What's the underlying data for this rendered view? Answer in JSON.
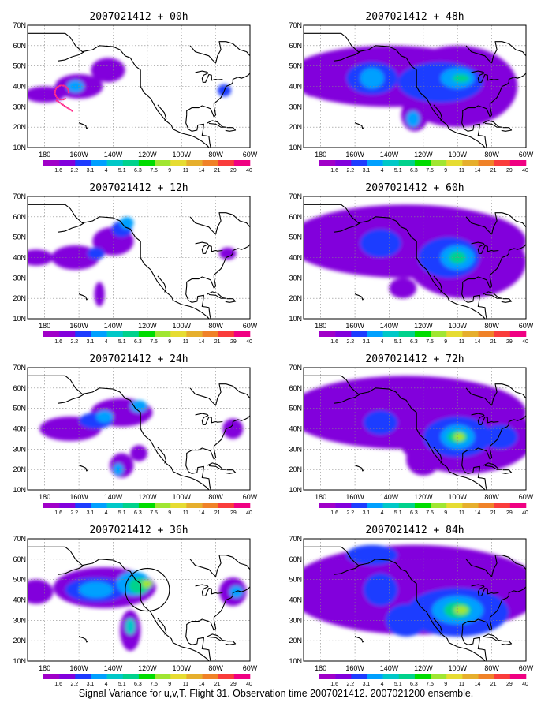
{
  "caption": "Signal Variance for u,v,T. Flight 31. Observation time 2007021412. 2007021200 ensemble.",
  "chart_data": {
    "type": "heatmap",
    "x_ticks": [
      "180",
      "160W",
      "140W",
      "120W",
      "100W",
      "80W",
      "60W"
    ],
    "y_ticks": [
      "70N",
      "60N",
      "50N",
      "40N",
      "30N",
      "20N",
      "10N"
    ],
    "xlim_lon": [
      -190,
      -60
    ],
    "ylim_lat": [
      10,
      70
    ],
    "grid": true,
    "colorbar": {
      "labels": [
        "1.6",
        "2.2",
        "3.1",
        "4",
        "5.1",
        "6.3",
        "7.5",
        "9",
        "11",
        "14",
        "21",
        "29",
        "40"
      ],
      "colors": [
        "#a000c8",
        "#8200dc",
        "#1e3cff",
        "#00a0ff",
        "#00c8c8",
        "#00d28c",
        "#00dc00",
        "#a0e632",
        "#e6dc32",
        "#e6af2d",
        "#f08228",
        "#fa3c3c",
        "#f00082"
      ]
    },
    "panels": [
      {
        "title": "2007021412 + 00h",
        "blobs": [
          {
            "lon": -180,
            "lat": 36,
            "rlon": 12,
            "rlat": 4,
            "level": 1
          },
          {
            "lon": -160,
            "lat": 40,
            "rlon": 14,
            "rlat": 6,
            "level": 1
          },
          {
            "lon": -162,
            "lat": 40,
            "rlon": 5,
            "rlat": 3,
            "level": 3
          },
          {
            "lon": -143,
            "lat": 48,
            "rlon": 10,
            "rlat": 6,
            "level": 1
          },
          {
            "lon": -75,
            "lat": 38,
            "rlon": 4,
            "rlat": 3,
            "level": 2
          }
        ]
      },
      {
        "title": "2007021412 + 12h",
        "blobs": [
          {
            "lon": -185,
            "lat": 40,
            "rlon": 10,
            "rlat": 4,
            "level": 1
          },
          {
            "lon": -162,
            "lat": 40,
            "rlon": 14,
            "rlat": 6,
            "level": 1
          },
          {
            "lon": -140,
            "lat": 48,
            "rlon": 12,
            "rlat": 7,
            "level": 1
          },
          {
            "lon": -135,
            "lat": 54,
            "rlon": 6,
            "rlat": 4,
            "level": 2
          },
          {
            "lon": -132,
            "lat": 57,
            "rlon": 4,
            "rlat": 3,
            "level": 3
          },
          {
            "lon": -150,
            "lat": 42,
            "rlon": 5,
            "rlat": 3,
            "level": 2
          },
          {
            "lon": -148,
            "lat": 22,
            "rlon": 3,
            "rlat": 6,
            "level": 1
          },
          {
            "lon": -73,
            "lat": 42,
            "rlon": 5,
            "rlat": 3,
            "level": 1
          }
        ]
      },
      {
        "title": "2007021412 + 24h",
        "blobs": [
          {
            "lon": -165,
            "lat": 40,
            "rlon": 18,
            "rlat": 6,
            "level": 1
          },
          {
            "lon": -135,
            "lat": 48,
            "rlon": 18,
            "rlat": 7,
            "level": 1
          },
          {
            "lon": -150,
            "lat": 44,
            "rlon": 10,
            "rlat": 4,
            "level": 2
          },
          {
            "lon": -145,
            "lat": 46,
            "rlon": 5,
            "rlat": 3,
            "level": 3
          },
          {
            "lon": -125,
            "lat": 51,
            "rlon": 5,
            "rlat": 3,
            "level": 3
          },
          {
            "lon": -135,
            "lat": 22,
            "rlon": 7,
            "rlat": 6,
            "level": 1
          },
          {
            "lon": -137,
            "lat": 20,
            "rlon": 3,
            "rlat": 3,
            "level": 3
          },
          {
            "lon": -125,
            "lat": 28,
            "rlon": 5,
            "rlat": 4,
            "level": 1
          },
          {
            "lon": -70,
            "lat": 40,
            "rlon": 6,
            "rlat": 5,
            "level": 1
          }
        ]
      },
      {
        "title": "2007021412 + 36h",
        "blobs": [
          {
            "lon": -185,
            "lat": 44,
            "rlon": 10,
            "rlat": 6,
            "level": 1
          },
          {
            "lon": -145,
            "lat": 46,
            "rlon": 30,
            "rlat": 10,
            "level": 1
          },
          {
            "lon": -150,
            "lat": 45,
            "rlon": 18,
            "rlat": 6,
            "level": 2
          },
          {
            "lon": -150,
            "lat": 45,
            "rlon": 10,
            "rlat": 4,
            "level": 3
          },
          {
            "lon": -128,
            "lat": 48,
            "rlon": 10,
            "rlat": 6,
            "level": 3
          },
          {
            "lon": -125,
            "lat": 47,
            "rlon": 6,
            "rlat": 4,
            "level": 5
          },
          {
            "lon": -120,
            "lat": 48,
            "rlon": 3,
            "rlat": 2,
            "level": 7
          },
          {
            "lon": -130,
            "lat": 25,
            "rlon": 6,
            "rlat": 10,
            "level": 1
          },
          {
            "lon": -130,
            "lat": 27,
            "rlon": 3,
            "rlat": 4,
            "level": 4
          },
          {
            "lon": -70,
            "lat": 44,
            "rlon": 8,
            "rlat": 7,
            "level": 1
          },
          {
            "lon": -68,
            "lat": 44,
            "rlon": 4,
            "rlat": 3,
            "level": 3
          }
        ]
      },
      {
        "title": "2007021412 + 48h",
        "blobs": [
          {
            "lon": -140,
            "lat": 45,
            "rlon": 60,
            "rlat": 15,
            "level": 1
          },
          {
            "lon": -100,
            "lat": 40,
            "rlon": 35,
            "rlat": 20,
            "level": 1
          },
          {
            "lon": -150,
            "lat": 44,
            "rlon": 15,
            "rlat": 8,
            "level": 2
          },
          {
            "lon": -150,
            "lat": 44,
            "rlon": 7,
            "rlat": 5,
            "level": 3
          },
          {
            "lon": -110,
            "lat": 42,
            "rlon": 25,
            "rlat": 10,
            "level": 2
          },
          {
            "lon": -100,
            "lat": 44,
            "rlon": 10,
            "rlat": 5,
            "level": 3
          },
          {
            "lon": -98,
            "lat": 44,
            "rlon": 5,
            "rlat": 2,
            "level": 5
          },
          {
            "lon": -125,
            "lat": 26,
            "rlon": 8,
            "rlat": 8,
            "level": 1
          },
          {
            "lon": -126,
            "lat": 24,
            "rlon": 4,
            "rlat": 4,
            "level": 3
          },
          {
            "lon": -185,
            "lat": 40,
            "rlon": 6,
            "rlat": 5,
            "level": 1
          }
        ]
      },
      {
        "title": "2007021412 + 60h",
        "blobs": [
          {
            "lon": -130,
            "lat": 48,
            "rlon": 70,
            "rlat": 18,
            "level": 1
          },
          {
            "lon": -95,
            "lat": 38,
            "rlon": 35,
            "rlat": 18,
            "level": 1
          },
          {
            "lon": -145,
            "lat": 47,
            "rlon": 12,
            "rlat": 7,
            "level": 2
          },
          {
            "lon": -105,
            "lat": 40,
            "rlon": 18,
            "rlat": 10,
            "level": 2
          },
          {
            "lon": -100,
            "lat": 40,
            "rlon": 10,
            "rlat": 6,
            "level": 3
          },
          {
            "lon": -100,
            "lat": 40,
            "rlon": 5,
            "rlat": 3,
            "level": 5
          },
          {
            "lon": -132,
            "lat": 25,
            "rlon": 8,
            "rlat": 5,
            "level": 1
          },
          {
            "lon": -75,
            "lat": 42,
            "rlon": 10,
            "rlat": 10,
            "level": 1
          }
        ]
      },
      {
        "title": "2007021412 + 72h",
        "blobs": [
          {
            "lon": -130,
            "lat": 48,
            "rlon": 70,
            "rlat": 18,
            "level": 1
          },
          {
            "lon": -95,
            "lat": 36,
            "rlon": 40,
            "rlat": 18,
            "level": 1
          },
          {
            "lon": -145,
            "lat": 43,
            "rlon": 10,
            "rlat": 6,
            "level": 2
          },
          {
            "lon": -100,
            "lat": 36,
            "rlon": 20,
            "rlat": 10,
            "level": 2
          },
          {
            "lon": -100,
            "lat": 36,
            "rlon": 10,
            "rlat": 6,
            "level": 3
          },
          {
            "lon": -100,
            "lat": 36,
            "rlon": 6,
            "rlat": 3,
            "level": 5
          },
          {
            "lon": -99,
            "lat": 36,
            "rlon": 3,
            "rlat": 2,
            "level": 7
          },
          {
            "lon": -75,
            "lat": 36,
            "rlon": 10,
            "rlat": 6,
            "level": 2
          },
          {
            "lon": -120,
            "lat": 25,
            "rlon": 10,
            "rlat": 8,
            "level": 1
          }
        ]
      },
      {
        "title": "2007021412 + 84h",
        "blobs": [
          {
            "lon": -125,
            "lat": 45,
            "rlon": 75,
            "rlat": 22,
            "level": 1
          },
          {
            "lon": -150,
            "lat": 62,
            "rlon": 15,
            "rlat": 5,
            "level": 2
          },
          {
            "lon": -100,
            "lat": 34,
            "rlon": 30,
            "rlat": 12,
            "level": 2
          },
          {
            "lon": -100,
            "lat": 35,
            "rlon": 15,
            "rlat": 7,
            "level": 3
          },
          {
            "lon": -100,
            "lat": 35,
            "rlon": 8,
            "rlat": 4,
            "level": 5
          },
          {
            "lon": -98,
            "lat": 35,
            "rlon": 4,
            "rlat": 2,
            "level": 7
          },
          {
            "lon": -145,
            "lat": 45,
            "rlon": 10,
            "rlat": 8,
            "level": 2
          },
          {
            "lon": -130,
            "lat": 30,
            "rlon": 12,
            "rlat": 8,
            "level": 2
          }
        ]
      }
    ]
  }
}
